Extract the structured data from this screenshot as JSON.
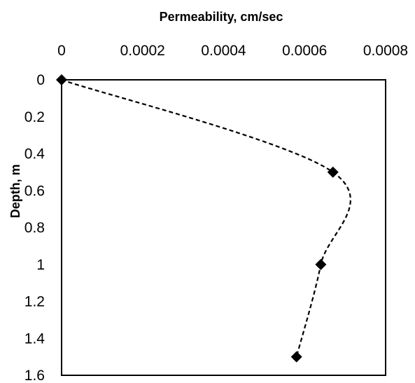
{
  "chart_data": {
    "type": "scatter",
    "title": "",
    "xlabel": "Permeability, cm/sec",
    "ylabel": "Depth, m",
    "x_axis_position": "top",
    "y_axis_reversed": true,
    "xlim": [
      0,
      0.0008
    ],
    "ylim": [
      0,
      1.6
    ],
    "x_ticks": [
      "0",
      "0.0002",
      "0.0004",
      "0.0006",
      "0.0008"
    ],
    "y_ticks": [
      "0",
      "0.2",
      "0.4",
      "0.6",
      "0.8",
      "1",
      "1.2",
      "1.4",
      "1.6"
    ],
    "grid": false,
    "legend": "none",
    "series": [
      {
        "marker": "diamond",
        "line": "dashed smooth",
        "color": "#000000",
        "points": [
          {
            "x": 0,
            "y": 0
          },
          {
            "x": 0.00067,
            "y": 0.5
          },
          {
            "x": 0.00064,
            "y": 1.0
          },
          {
            "x": 0.00058,
            "y": 1.5
          }
        ]
      }
    ]
  }
}
